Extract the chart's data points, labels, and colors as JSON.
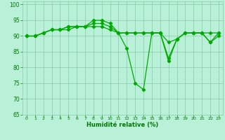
{
  "x": [
    0,
    1,
    2,
    3,
    4,
    5,
    6,
    7,
    8,
    9,
    10,
    11,
    12,
    13,
    14,
    15,
    16,
    17,
    18,
    19,
    20,
    21,
    22,
    23
  ],
  "line1": [
    90,
    90,
    91,
    92,
    92,
    93,
    93,
    93,
    95,
    95,
    94,
    91,
    86,
    75,
    73,
    91,
    91,
    82,
    89,
    91,
    91,
    91,
    88,
    90
  ],
  "line2": [
    90,
    90,
    91,
    92,
    92,
    93,
    93,
    93,
    94,
    94,
    93,
    91,
    91,
    91,
    91,
    91,
    91,
    83,
    89,
    91,
    91,
    91,
    88,
    91
  ],
  "line3": [
    90,
    90,
    91,
    92,
    92,
    92,
    93,
    93,
    93,
    93,
    92,
    91,
    91,
    91,
    91,
    91,
    91,
    88,
    89,
    91,
    91,
    91,
    91,
    91
  ],
  "line_color": "#00aa00",
  "bg_color": "#b8f0d8",
  "grid_color": "#88ccaa",
  "axis_color": "#007700",
  "xlabel": "Humidité relative (%)",
  "ylim": [
    65,
    101
  ],
  "xlim": [
    -0.5,
    23.5
  ],
  "yticks": [
    65,
    70,
    75,
    80,
    85,
    90,
    95,
    100
  ],
  "xticks": [
    0,
    1,
    2,
    3,
    4,
    5,
    6,
    7,
    8,
    9,
    10,
    11,
    12,
    13,
    14,
    15,
    16,
    17,
    18,
    19,
    20,
    21,
    22,
    23
  ]
}
